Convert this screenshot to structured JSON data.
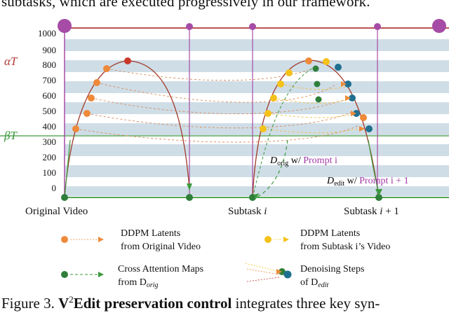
{
  "top_text": "subtasks, which are executed progressively in our framework.",
  "figure": {
    "y_ticks": [
      "1000",
      "900",
      "800",
      "700",
      "600",
      "500",
      "400",
      "300",
      "200",
      "100",
      "0"
    ],
    "alpha_label": "αT",
    "beta_label": "βT",
    "x_labels": {
      "original": "Original Video",
      "subtask_prefix": "Subtask ",
      "subtask_var": "i",
      "subtask_next_var": "i",
      "subtask_next_suffix": " + 1"
    },
    "annotations": {
      "d_orig": "D",
      "d_orig_sub": "orig",
      "d_orig_mid": " w/ ",
      "prompt_i": "Prompt i",
      "d_edit": "D",
      "d_edit_sub": "edit",
      "d_edit_mid": " w/ ",
      "prompt_i1": "Prompt i + 1"
    },
    "legend": {
      "ddpm_orig_l1": "DDPM Latents",
      "ddpm_orig_l2": "from Original Video",
      "ddpm_sub_l1": "DDPM Latents",
      "ddpm_sub_l2": "from Subtask i’s Video",
      "cross_l1": "Cross Attention Maps",
      "cross_l2": "from D",
      "cross_l2_sub": "orig",
      "denoise_l1": "Denoising Steps",
      "denoise_l2": "of D",
      "denoise_l2_sub": "edit"
    },
    "colors": {
      "stripe": "#cfdde7",
      "red_line": "#b33a3a",
      "green_line": "#3c9a3c",
      "purple": "#a64ca6",
      "orange": "#ee8a3a",
      "yellow": "#f5c21a",
      "green_dot": "#2f7f3a",
      "teal_dot": "#1f6f8f",
      "magenta_text": "#a23aa6",
      "arc": "#a03a2a"
    }
  },
  "caption": {
    "prefix": "Figure 3. ",
    "v": "V",
    "sup": "2",
    "bold": "Edit preservation control",
    "rest": " integrates three key syn-"
  }
}
